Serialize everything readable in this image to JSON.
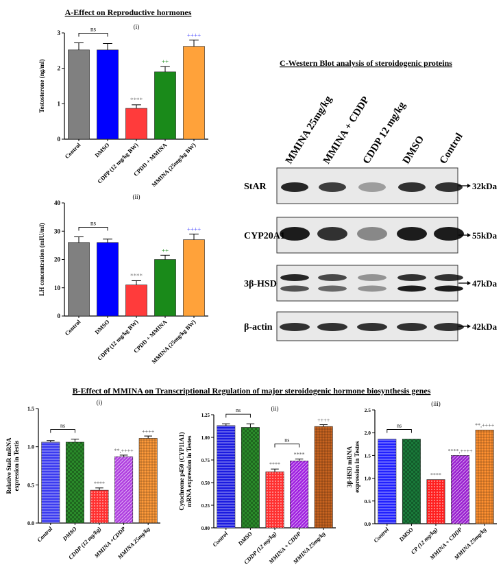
{
  "section_a": {
    "title": "A-Effect on Reproductive hormones",
    "charts": [
      {
        "type": "bar",
        "panel": "(i)",
        "ylabel": "Testosterone (ng/ml)",
        "ylim": [
          0,
          3
        ],
        "yticks": [
          "0",
          "1",
          "2",
          "3"
        ],
        "categories": [
          "Control",
          "DMSO",
          "CDPP (12 mg/kg BW)",
          "CPDD + MMINA",
          "MMINA (25mg/kg BW)"
        ],
        "values": [
          2.52,
          2.52,
          0.87,
          1.9,
          2.62
        ],
        "errors": [
          0.2,
          0.18,
          0.1,
          0.15,
          0.18
        ],
        "colors": [
          "#808080",
          "#0000ff",
          "#ff3b3b",
          "#1a8a1a",
          "#ffa23a"
        ],
        "annotations": [
          "",
          "",
          "****",
          "++",
          "++++"
        ],
        "annotation_colors": [
          "#808080",
          "#808080",
          "#808080",
          "#1a8a1a",
          "#3b3bff"
        ],
        "bracket_label": "ns",
        "grid": false
      },
      {
        "type": "bar",
        "panel": "(ii)",
        "ylabel": "LH concentration (mIU/ml)",
        "ylim": [
          0,
          40
        ],
        "yticks": [
          "0",
          "10",
          "20",
          "30",
          "40"
        ],
        "categories": [
          "Control",
          "DMSO",
          "CDPP (12 mg/kg BW)",
          "CPDD + MMINA",
          "MMINA (25mg/kg BW)"
        ],
        "values": [
          26,
          26,
          11,
          20,
          27
        ],
        "errors": [
          2,
          1.2,
          1.5,
          1.5,
          2
        ],
        "colors": [
          "#808080",
          "#0000ff",
          "#ff3b3b",
          "#1a8a1a",
          "#ffa23a"
        ],
        "annotations": [
          "",
          "",
          "****",
          "++",
          "++++"
        ],
        "annotation_colors": [
          "#808080",
          "#808080",
          "#808080",
          "#1a8a1a",
          "#3b3bff"
        ],
        "bracket_label": "ns",
        "grid": false
      }
    ]
  },
  "section_c": {
    "title": "C-Western Blot analysis of steroidogenic  proteins",
    "lanes": [
      "MMINA 25mg/kg",
      "MMINA + CDDP",
      "CDDP 12 mg/kg",
      "DMSO",
      "Control"
    ],
    "blots": [
      {
        "protein": "StAR",
        "size": "32kDa"
      },
      {
        "protein": "CYP20A1",
        "size": "55kDa"
      },
      {
        "protein": "3β-HSD",
        "size": "47kDa"
      },
      {
        "protein": "β-actin",
        "size": "42kDa"
      }
    ]
  },
  "section_b": {
    "title": "B-Effect of MMINA on Transcriptional Regulation of major steroidogenic hormone biosynthesis genes",
    "charts": [
      {
        "type": "bar",
        "panel": "(i)",
        "ylabel_lines": [
          "Relative StaR mRNA",
          "expression in Testis"
        ],
        "ylim": [
          0,
          1.5
        ],
        "yticks": [
          "0.0",
          "0.5",
          "1.0",
          "1.5"
        ],
        "categories": [
          "Control",
          "DMSO",
          "CDDP (12 mg/kg)",
          "MMINA +CDDP",
          "MMINA 25mg/kg"
        ],
        "values": [
          1.06,
          1.06,
          0.43,
          0.87,
          1.11
        ],
        "errors": [
          0.02,
          0.04,
          0.03,
          0.02,
          0.03
        ],
        "colors": [
          "#3a3af0",
          "#2a8a2a",
          "#ff3030",
          "#b040e0",
          "#ff9a3a"
        ],
        "annotations": [
          "",
          "",
          "****",
          "**,++++",
          "++++"
        ],
        "annotation_colors": [
          "#555555",
          "#555555",
          "#555555",
          "#555555",
          "#555555"
        ],
        "bracket_label": "ns",
        "grid": false
      },
      {
        "type": "bar",
        "panel": "(ii)",
        "ylabel_lines": [
          "Cytochrome p450 (CYP11A1)",
          "mRNA expression in Testes"
        ],
        "ylim": [
          0,
          1.25
        ],
        "yticks": [
          "0.00",
          "0.25",
          "0.50",
          "0.75",
          "1.00",
          "1.25"
        ],
        "categories": [
          "Control",
          "DMSO",
          "CDDP (12 mg/kg)",
          "MMINA + CDDP",
          "MMINA 25mg/kg"
        ],
        "values": [
          1.13,
          1.11,
          0.62,
          0.74,
          1.12
        ],
        "errors": [
          0.02,
          0.04,
          0.03,
          0.02,
          0.02
        ],
        "colors": [
          "#1a1ae0",
          "#2a8a2a",
          "#ff3030",
          "#a020e0",
          "#c86420"
        ],
        "annotations": [
          "",
          "",
          "****",
          "****",
          "++++"
        ],
        "annotation_colors": [
          "#555555",
          "#555555",
          "#555555",
          "#555555",
          "#555555"
        ],
        "bracket_label": "ns",
        "bracket2_label": "ns",
        "grid": false
      },
      {
        "type": "bar",
        "panel": "(iii)",
        "ylabel_lines": [
          "3β-HSD mRNA",
          "expression in Testes"
        ],
        "ylim": [
          0,
          2.5
        ],
        "yticks": [
          "0.0",
          "0.5",
          "1.0",
          "1.5",
          "2.0",
          "2.5"
        ],
        "categories": [
          "Control",
          "DMSO",
          "CP (12 mg/kg)",
          "MMINA + CDDP",
          "MMINA  25mg/kg"
        ],
        "values": [
          1.86,
          1.86,
          0.97,
          1.5,
          2.06
        ],
        "errors": [
          0,
          0,
          0,
          0,
          0
        ],
        "colors": [
          "#2020ff",
          "#1a7a3a",
          "#ff2020",
          "#9a20d0",
          "#ff9030"
        ],
        "annotations": [
          "",
          "",
          "****",
          "****,++++",
          "**,++++"
        ],
        "annotation_colors": [
          "#555555",
          "#555555",
          "#555555",
          "#555555",
          "#555555"
        ],
        "bracket_label": "ns",
        "grid": false
      }
    ]
  }
}
